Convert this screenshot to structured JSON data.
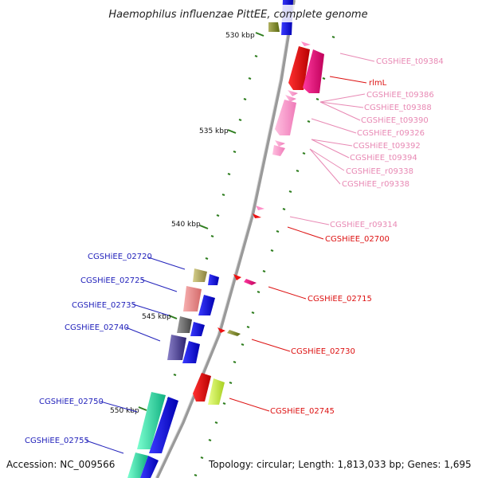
{
  "title": "Haemophilus influenzae PittEE, complete genome",
  "footer": {
    "accession": "Accession: NC_009566",
    "topology": "Topology: circular; Length: 1,813,033 bp; Genes: 1,695"
  },
  "ticks": [
    "530 kbp",
    "535 kbp",
    "540 kbp",
    "545 kbp",
    "550 kbp"
  ],
  "right_labels": [
    "CGSHiEE_t09384",
    "rlmL",
    "CGSHiEE_t09386",
    "CGSHiEE_t09388",
    "CGSHiEE_t09390",
    "CGSHiEE_r09326",
    "CGSHiEE_t09392",
    "CGSHiEE_t09394",
    "CGSHiEE_r09338",
    "CGSHiEE_r09338",
    "CGSHiEE_r09314",
    "CGSHiEE_02700",
    "CGSHiEE_02715",
    "CGSHiEE_02730",
    "CGSHiEE_02745"
  ],
  "left_labels": [
    "CGSHiEE_02720",
    "CGSHiEE_02725",
    "CGSHiEE_02735",
    "CGSHiEE_02740",
    "CGSHiEE_02750",
    "CGSHiEE_02755"
  ],
  "colors": {
    "backbone": "#888888",
    "gc_tick": "#2e7d1e",
    "trna": "#ff8fc8",
    "red_gene": "#ee1111",
    "blue_gene": "#1111dd",
    "label_pink": "#e889b4",
    "label_red": "#dd1111",
    "label_blue": "#2222bb"
  }
}
